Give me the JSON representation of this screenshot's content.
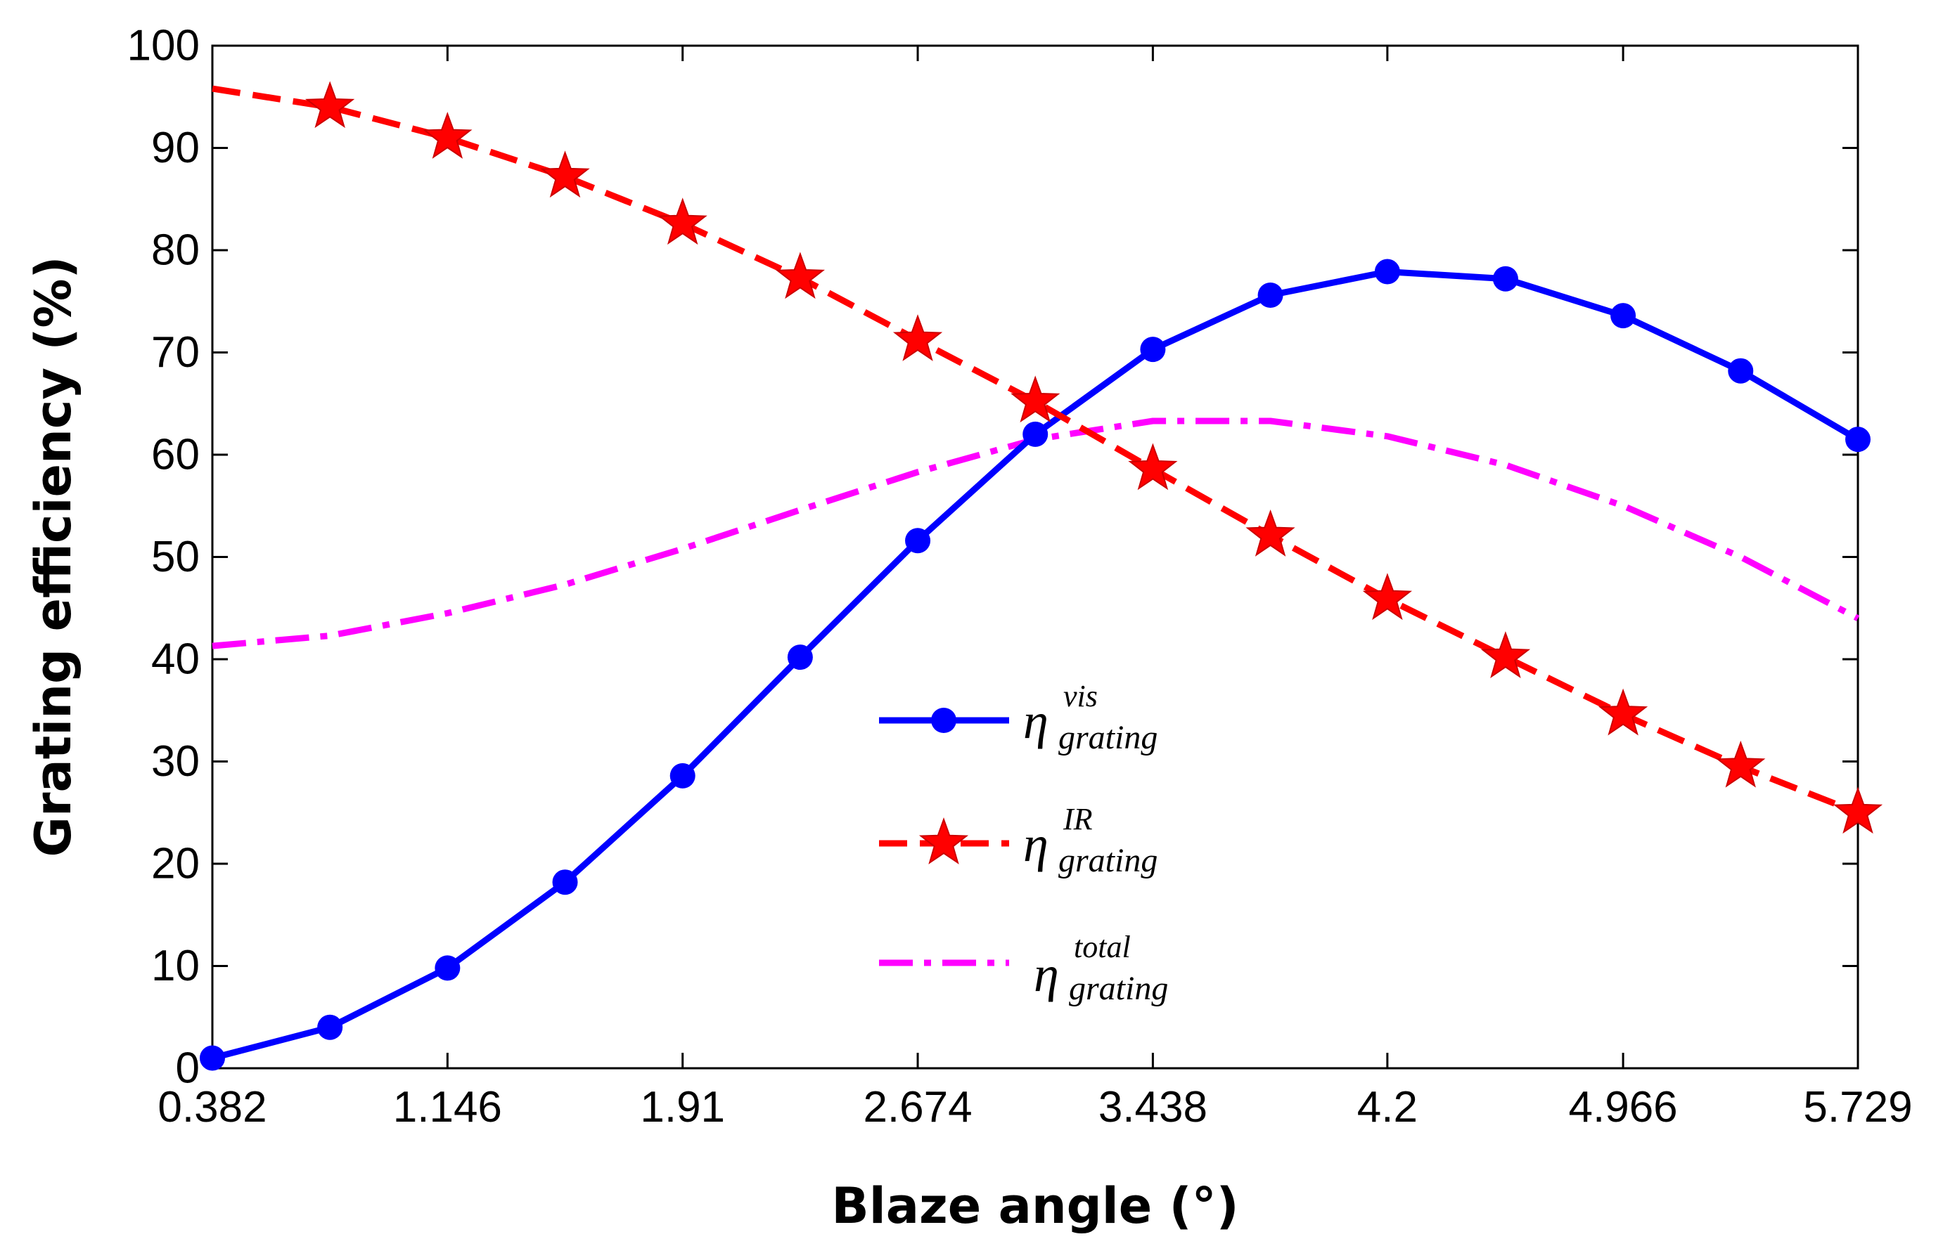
{
  "chart_data": {
    "type": "line",
    "title": "",
    "xlabel": "Blaze angle (°)",
    "ylabel": "Grating efficiency (%)",
    "xlim": [
      0.382,
      5.729
    ],
    "ylim": [
      0,
      100
    ],
    "xticks": [
      "0.382",
      "1.146",
      "1.91",
      "2.674",
      "3.438",
      "4.2",
      "4.966",
      "5.729"
    ],
    "yticks": [
      "0",
      "10",
      "20",
      "30",
      "40",
      "50",
      "60",
      "70",
      "80",
      "90",
      "100"
    ],
    "grid": false,
    "legend_position": "center",
    "series": [
      {
        "name": "η vis grating",
        "eta": "η",
        "sup": "vis",
        "sub": "grating",
        "color": "#0000ff",
        "style": "solid",
        "marker": "circle",
        "x": [
          0.382,
          0.764,
          1.146,
          1.528,
          1.91,
          2.292,
          2.674,
          3.056,
          3.438,
          3.82,
          4.2,
          4.584,
          4.966,
          5.348,
          5.729
        ],
        "y": [
          1,
          4,
          9.8,
          18.2,
          28.6,
          40.2,
          51.6,
          62,
          70.3,
          75.6,
          77.9,
          77.2,
          73.6,
          68.2,
          61.5
        ]
      },
      {
        "name": "η IR grating",
        "eta": "η",
        "sup": "IR",
        "sub": "grating",
        "color": "#ff0000",
        "style": "dashed",
        "marker": "star",
        "x": [
          0.764,
          1.146,
          1.528,
          1.91,
          2.292,
          2.674,
          3.056,
          3.438,
          3.82,
          4.2,
          4.584,
          4.966,
          5.348,
          5.729
        ],
        "y": [
          94,
          91,
          87.2,
          82.6,
          77.3,
          71.2,
          65.2,
          58.6,
          52.1,
          45.9,
          40.2,
          34.6,
          29.5,
          25
        ],
        "line_x": [
          0.382,
          0.764,
          1.146,
          1.528,
          1.91,
          2.292,
          2.674,
          3.056,
          3.438,
          3.82,
          4.2,
          4.584,
          4.966,
          5.348,
          5.729
        ],
        "line_y": [
          95.8,
          94,
          91,
          87.2,
          82.6,
          77.3,
          71.2,
          65.2,
          58.6,
          52.1,
          45.9,
          40.2,
          34.6,
          29.5,
          25
        ]
      },
      {
        "name": "η total grating",
        "eta": "η",
        "sup": "total",
        "sub": "grating",
        "color": "#ff00ff",
        "style": "dashdot",
        "marker": "none",
        "x": [
          0.382,
          0.764,
          1.146,
          1.528,
          1.91,
          2.292,
          2.674,
          3.056,
          3.438,
          3.82,
          4.2,
          4.584,
          4.966,
          5.348,
          5.729
        ],
        "y": [
          41.3,
          42.3,
          44.5,
          47.3,
          50.8,
          54.6,
          58.3,
          61.5,
          63.3,
          63.3,
          61.8,
          59,
          55,
          50,
          44
        ]
      }
    ]
  }
}
